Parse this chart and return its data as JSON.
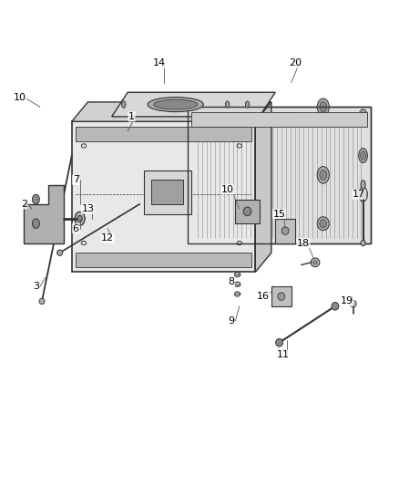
{
  "title": "",
  "background_color": "#ffffff",
  "fig_width": 4.38,
  "fig_height": 5.33,
  "dpi": 100,
  "line_color": "#333333",
  "label_color": "#000000",
  "label_fontsize": 8
}
